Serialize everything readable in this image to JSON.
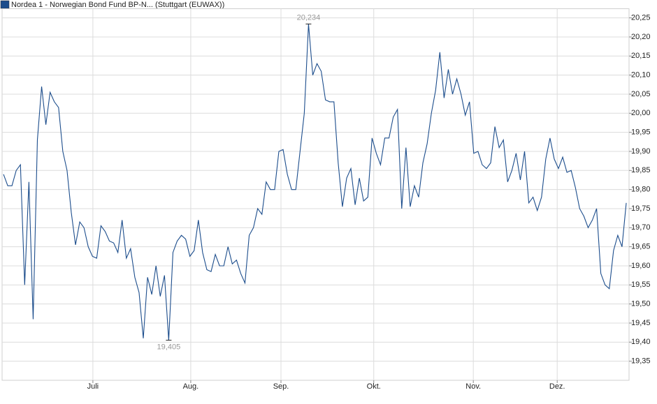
{
  "chart_data": {
    "type": "line",
    "title": "Nordea 1 - Norwegian Bond Fund BP-N... (Stuttgart (EUWAX))",
    "series": [
      {
        "name": "Nordea 1 - Norwegian Bond Fund BP-N... (Stuttgart (EUWAX))",
        "color": "#1c4d8c",
        "values": [
          19.84,
          19.81,
          19.81,
          19.85,
          19.865,
          19.55,
          19.82,
          19.46,
          19.93,
          20.07,
          19.97,
          20.055,
          20.03,
          20.015,
          19.9,
          19.85,
          19.74,
          19.655,
          19.715,
          19.7,
          19.65,
          19.625,
          19.62,
          19.705,
          19.69,
          19.665,
          19.66,
          19.635,
          19.72,
          19.62,
          19.645,
          19.57,
          19.53,
          19.41,
          19.57,
          19.525,
          19.6,
          19.52,
          19.575,
          19.405,
          19.635,
          19.665,
          19.68,
          19.67,
          19.625,
          19.64,
          19.72,
          19.635,
          19.59,
          19.585,
          19.63,
          19.6,
          19.6,
          19.65,
          19.605,
          19.615,
          19.58,
          19.555,
          19.68,
          19.7,
          19.75,
          19.735,
          19.82,
          19.8,
          19.8,
          19.9,
          19.905,
          19.84,
          19.8,
          19.8,
          19.9,
          20.0,
          20.234,
          20.1,
          20.13,
          20.11,
          20.035,
          20.03,
          20.03,
          19.87,
          19.755,
          19.83,
          19.855,
          19.76,
          19.83,
          19.77,
          19.78,
          19.935,
          19.895,
          19.865,
          19.935,
          19.935,
          19.99,
          20.01,
          19.75,
          19.91,
          19.755,
          19.81,
          19.78,
          19.87,
          19.92,
          20.0,
          20.06,
          20.16,
          20.04,
          20.115,
          20.05,
          20.09,
          20.05,
          19.995,
          20.03,
          19.895,
          19.9,
          19.865,
          19.855,
          19.87,
          19.965,
          19.91,
          19.93,
          19.82,
          19.85,
          19.895,
          19.825,
          19.9,
          19.765,
          19.78,
          19.745,
          19.78,
          19.88,
          19.935,
          19.88,
          19.855,
          19.885,
          19.845,
          19.85,
          19.805,
          19.75,
          19.73,
          19.7,
          19.72,
          19.75,
          19.58,
          19.55,
          19.54,
          19.64,
          19.68,
          19.65,
          19.765
        ]
      }
    ],
    "annotations": [
      {
        "label": "20,234",
        "value": 20.234
      },
      {
        "label": "19,405",
        "value": 19.405
      }
    ],
    "xlim": [
      0,
      147
    ],
    "xticks": [
      {
        "value": 21.1,
        "label": "Juli"
      },
      {
        "value": 44.2,
        "label": "Aug."
      },
      {
        "value": 65.5,
        "label": "Sep."
      },
      {
        "value": 87.4,
        "label": "Okt."
      },
      {
        "value": 110.9,
        "label": "Nov."
      },
      {
        "value": 130.7,
        "label": "Dez."
      }
    ],
    "ylim": [
      19.3,
      20.274
    ],
    "yticks": [
      {
        "value": 19.35,
        "label": "19,35"
      },
      {
        "value": 19.4,
        "label": "19,40"
      },
      {
        "value": 19.45,
        "label": "19,45"
      },
      {
        "value": 19.5,
        "label": "19,50"
      },
      {
        "value": 19.55,
        "label": "19,55"
      },
      {
        "value": 19.6,
        "label": "19,60"
      },
      {
        "value": 19.65,
        "label": "19,65"
      },
      {
        "value": 19.7,
        "label": "19,70"
      },
      {
        "value": 19.75,
        "label": "19,75"
      },
      {
        "value": 19.8,
        "label": "19,80"
      },
      {
        "value": 19.85,
        "label": "19,85"
      },
      {
        "value": 19.9,
        "label": "19,90"
      },
      {
        "value": 19.95,
        "label": "19,95"
      },
      {
        "value": 20.0,
        "label": "20,00"
      },
      {
        "value": 20.05,
        "label": "20,05"
      },
      {
        "value": 20.1,
        "label": "20,10"
      },
      {
        "value": 20.15,
        "label": "20,15"
      },
      {
        "value": 20.2,
        "label": "20,20"
      },
      {
        "value": 20.25,
        "label": "20,25"
      }
    ],
    "grid": true
  }
}
